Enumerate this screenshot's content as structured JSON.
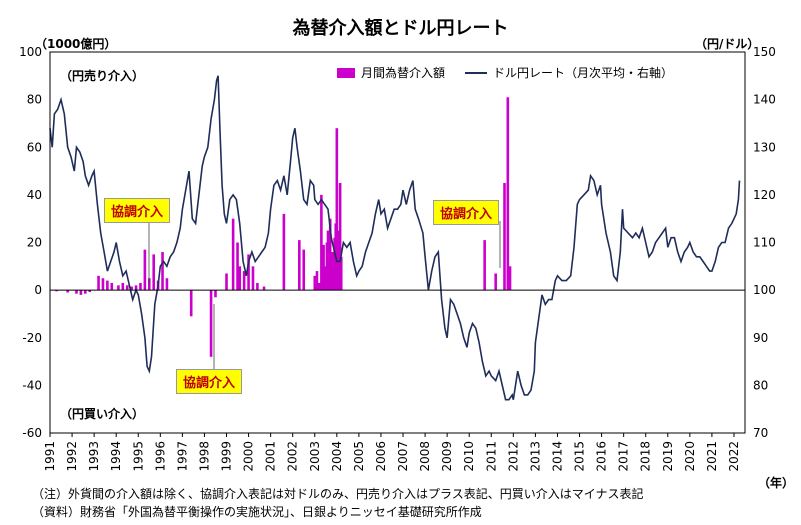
{
  "chart_data": {
    "type": "bar+line",
    "title": "為替介入額とドル円レート",
    "left_axis_unit": "（1000億円）",
    "right_axis_unit": "（円/ドル）",
    "x_unit": "（年）",
    "ylim_left": [
      -60,
      100
    ],
    "yticks_left": [
      -60,
      -40,
      -20,
      0,
      20,
      40,
      60,
      80,
      100
    ],
    "ylim_right": [
      70,
      150
    ],
    "yticks_right": [
      70,
      80,
      90,
      100,
      110,
      120,
      130,
      140,
      150
    ],
    "years": [
      "1991",
      "1992",
      "1993",
      "1994",
      "1995",
      "1996",
      "1997",
      "1998",
      "1999",
      "2000",
      "2001",
      "2002",
      "2003",
      "2004",
      "2005",
      "2006",
      "2007",
      "2008",
      "2009",
      "2010",
      "2011",
      "2012",
      "2013",
      "2014",
      "2015",
      "2016",
      "2017",
      "2018",
      "2019",
      "2020",
      "2021",
      "2022"
    ],
    "series": [
      {
        "name": "月間為替介入額",
        "kind": "bar",
        "color": "#cc00cc",
        "points": [
          [
            1991.3,
            -0.5
          ],
          [
            1991.8,
            -1
          ],
          [
            1992.2,
            -1.5
          ],
          [
            1992.4,
            -2
          ],
          [
            1992.6,
            -1.5
          ],
          [
            1992.8,
            -0.8
          ],
          [
            1993.2,
            6
          ],
          [
            1993.4,
            5
          ],
          [
            1993.6,
            4
          ],
          [
            1993.8,
            3
          ],
          [
            1994.1,
            2
          ],
          [
            1994.3,
            3
          ],
          [
            1994.5,
            2
          ],
          [
            1994.7,
            1.5
          ],
          [
            1994.9,
            2
          ],
          [
            1995.1,
            3
          ],
          [
            1995.3,
            17
          ],
          [
            1995.5,
            5
          ],
          [
            1995.7,
            15
          ],
          [
            1995.9,
            4
          ],
          [
            1996.1,
            16
          ],
          [
            1996.3,
            5
          ],
          [
            1997.4,
            -11
          ],
          [
            1998.3,
            -28
          ],
          [
            1998.5,
            -3
          ],
          [
            1999.0,
            7
          ],
          [
            1999.3,
            30
          ],
          [
            1999.5,
            20
          ],
          [
            1999.6,
            10
          ],
          [
            1999.8,
            8
          ],
          [
            2000.0,
            15
          ],
          [
            2000.2,
            10
          ],
          [
            2000.4,
            3
          ],
          [
            2000.7,
            1.5
          ],
          [
            2001.6,
            32
          ],
          [
            2002.3,
            21
          ],
          [
            2002.5,
            17
          ],
          [
            2003.0,
            6
          ],
          [
            2003.1,
            8
          ],
          [
            2003.2,
            3
          ],
          [
            2003.3,
            40
          ],
          [
            2003.4,
            19
          ],
          [
            2003.5,
            10
          ],
          [
            2003.55,
            20
          ],
          [
            2003.6,
            25
          ],
          [
            2003.7,
            30
          ],
          [
            2003.8,
            16
          ],
          [
            2003.9,
            22
          ],
          [
            2003.95,
            28
          ],
          [
            2004.0,
            68
          ],
          [
            2004.05,
            25
          ],
          [
            2004.1,
            20
          ],
          [
            2004.15,
            45
          ],
          [
            2004.2,
            14
          ],
          [
            2010.7,
            21
          ],
          [
            2011.2,
            7
          ],
          [
            2011.6,
            45
          ],
          [
            2011.75,
            81
          ],
          [
            2011.85,
            10
          ]
        ]
      },
      {
        "name": "ドル円レート（月次平均・右軸）",
        "kind": "line",
        "axis": "right",
        "color": "#1f2d5a",
        "points": [
          [
            1991.0,
            134
          ],
          [
            1991.1,
            130
          ],
          [
            1991.2,
            137
          ],
          [
            1991.35,
            138
          ],
          [
            1991.5,
            140
          ],
          [
            1991.65,
            137
          ],
          [
            1991.8,
            130
          ],
          [
            1991.95,
            128
          ],
          [
            1992.1,
            125
          ],
          [
            1992.2,
            130
          ],
          [
            1992.35,
            129
          ],
          [
            1992.5,
            127
          ],
          [
            1992.6,
            124
          ],
          [
            1992.75,
            122
          ],
          [
            1992.9,
            124
          ],
          [
            1993.0,
            125
          ],
          [
            1993.15,
            118
          ],
          [
            1993.3,
            112
          ],
          [
            1993.45,
            108
          ],
          [
            1993.6,
            104
          ],
          [
            1993.75,
            106
          ],
          [
            1993.9,
            108
          ],
          [
            1994.0,
            110
          ],
          [
            1994.15,
            106
          ],
          [
            1994.3,
            103
          ],
          [
            1994.45,
            104
          ],
          [
            1994.6,
            101
          ],
          [
            1994.75,
            98
          ],
          [
            1994.9,
            100
          ],
          [
            1995.0,
            99
          ],
          [
            1995.15,
            95
          ],
          [
            1995.3,
            90
          ],
          [
            1995.4,
            84
          ],
          [
            1995.5,
            83
          ],
          [
            1995.6,
            86
          ],
          [
            1995.75,
            97
          ],
          [
            1995.9,
            101
          ],
          [
            1996.0,
            105
          ],
          [
            1996.15,
            106
          ],
          [
            1996.3,
            105
          ],
          [
            1996.45,
            107
          ],
          [
            1996.6,
            108
          ],
          [
            1996.75,
            110
          ],
          [
            1996.9,
            113
          ],
          [
            1997.0,
            117
          ],
          [
            1997.15,
            121
          ],
          [
            1997.3,
            125
          ],
          [
            1997.45,
            115
          ],
          [
            1997.6,
            114
          ],
          [
            1997.75,
            120
          ],
          [
            1997.9,
            126
          ],
          [
            1998.0,
            128
          ],
          [
            1998.15,
            130
          ],
          [
            1998.3,
            136
          ],
          [
            1998.45,
            140
          ],
          [
            1998.55,
            144
          ],
          [
            1998.62,
            145
          ],
          [
            1998.7,
            134
          ],
          [
            1998.8,
            122
          ],
          [
            1998.9,
            116
          ],
          [
            1999.0,
            114
          ],
          [
            1999.15,
            119
          ],
          [
            1999.3,
            120
          ],
          [
            1999.45,
            119
          ],
          [
            1999.6,
            114
          ],
          [
            1999.75,
            106
          ],
          [
            1999.9,
            103
          ],
          [
            2000.0,
            106
          ],
          [
            2000.15,
            108
          ],
          [
            2000.3,
            106
          ],
          [
            2000.45,
            107
          ],
          [
            2000.6,
            108
          ],
          [
            2000.75,
            109
          ],
          [
            2000.9,
            112
          ],
          [
            2001.0,
            117
          ],
          [
            2001.15,
            122
          ],
          [
            2001.3,
            123
          ],
          [
            2001.45,
            121
          ],
          [
            2001.6,
            124
          ],
          [
            2001.75,
            120
          ],
          [
            2001.9,
            127
          ],
          [
            2002.0,
            132
          ],
          [
            2002.1,
            134
          ],
          [
            2002.2,
            130
          ],
          [
            2002.35,
            125
          ],
          [
            2002.5,
            119
          ],
          [
            2002.65,
            118
          ],
          [
            2002.8,
            123
          ],
          [
            2002.95,
            122
          ],
          [
            2003.0,
            119
          ],
          [
            2003.15,
            118
          ],
          [
            2003.3,
            119
          ],
          [
            2003.45,
            118
          ],
          [
            2003.6,
            117
          ],
          [
            2003.75,
            111
          ],
          [
            2003.9,
            108
          ],
          [
            2004.0,
            106
          ],
          [
            2004.15,
            106
          ],
          [
            2004.3,
            110
          ],
          [
            2004.45,
            109
          ],
          [
            2004.6,
            110
          ],
          [
            2004.75,
            106
          ],
          [
            2004.9,
            103
          ],
          [
            2005.0,
            104
          ],
          [
            2005.15,
            105
          ],
          [
            2005.3,
            108
          ],
          [
            2005.45,
            110
          ],
          [
            2005.6,
            112
          ],
          [
            2005.75,
            116
          ],
          [
            2005.9,
            119
          ],
          [
            2006.0,
            116
          ],
          [
            2006.15,
            117
          ],
          [
            2006.3,
            113
          ],
          [
            2006.45,
            115
          ],
          [
            2006.6,
            117
          ],
          [
            2006.75,
            117
          ],
          [
            2006.9,
            118
          ],
          [
            2007.0,
            121
          ],
          [
            2007.15,
            118
          ],
          [
            2007.3,
            121
          ],
          [
            2007.45,
            123
          ],
          [
            2007.55,
            117
          ],
          [
            2007.7,
            115
          ],
          [
            2007.9,
            112
          ],
          [
            2008.0,
            107
          ],
          [
            2008.15,
            100
          ],
          [
            2008.3,
            104
          ],
          [
            2008.45,
            107
          ],
          [
            2008.6,
            108
          ],
          [
            2008.75,
            98
          ],
          [
            2008.9,
            92
          ],
          [
            2009.0,
            90
          ],
          [
            2009.15,
            98
          ],
          [
            2009.3,
            97
          ],
          [
            2009.45,
            95
          ],
          [
            2009.6,
            93
          ],
          [
            2009.75,
            90
          ],
          [
            2009.9,
            88
          ],
          [
            2010.0,
            91
          ],
          [
            2010.15,
            93
          ],
          [
            2010.3,
            92
          ],
          [
            2010.45,
            89
          ],
          [
            2010.6,
            85
          ],
          [
            2010.75,
            82
          ],
          [
            2010.9,
            83
          ],
          [
            2011.0,
            82
          ],
          [
            2011.2,
            81
          ],
          [
            2011.35,
            83
          ],
          [
            2011.5,
            80
          ],
          [
            2011.65,
            77
          ],
          [
            2011.8,
            77
          ],
          [
            2011.95,
            78
          ],
          [
            2012.0,
            77
          ],
          [
            2012.2,
            83
          ],
          [
            2012.35,
            80
          ],
          [
            2012.5,
            78
          ],
          [
            2012.65,
            78
          ],
          [
            2012.8,
            79
          ],
          [
            2012.95,
            83
          ],
          [
            2013.0,
            89
          ],
          [
            2013.15,
            94
          ],
          [
            2013.3,
            99
          ],
          [
            2013.45,
            97
          ],
          [
            2013.6,
            98
          ],
          [
            2013.75,
            98
          ],
          [
            2013.9,
            102
          ],
          [
            2014.0,
            103
          ],
          [
            2014.2,
            102
          ],
          [
            2014.4,
            102
          ],
          [
            2014.6,
            103
          ],
          [
            2014.75,
            109
          ],
          [
            2014.9,
            118
          ],
          [
            2015.0,
            119
          ],
          [
            2015.2,
            120
          ],
          [
            2015.4,
            121
          ],
          [
            2015.5,
            124
          ],
          [
            2015.65,
            123
          ],
          [
            2015.8,
            120
          ],
          [
            2015.95,
            122
          ],
          [
            2016.0,
            118
          ],
          [
            2016.2,
            112
          ],
          [
            2016.4,
            108
          ],
          [
            2016.55,
            103
          ],
          [
            2016.7,
            102
          ],
          [
            2016.85,
            108
          ],
          [
            2016.95,
            117
          ],
          [
            2017.0,
            113
          ],
          [
            2017.2,
            112
          ],
          [
            2017.4,
            111
          ],
          [
            2017.55,
            112
          ],
          [
            2017.7,
            111
          ],
          [
            2017.85,
            113
          ],
          [
            2018.0,
            110
          ],
          [
            2018.15,
            107
          ],
          [
            2018.3,
            108
          ],
          [
            2018.45,
            110
          ],
          [
            2018.6,
            111
          ],
          [
            2018.75,
            112
          ],
          [
            2018.9,
            113
          ],
          [
            2019.0,
            109
          ],
          [
            2019.15,
            111
          ],
          [
            2019.3,
            111
          ],
          [
            2019.45,
            108
          ],
          [
            2019.6,
            106
          ],
          [
            2019.75,
            108
          ],
          [
            2019.9,
            109
          ],
          [
            2020.0,
            110
          ],
          [
            2020.15,
            108
          ],
          [
            2020.3,
            107
          ],
          [
            2020.45,
            107
          ],
          [
            2020.6,
            106
          ],
          [
            2020.75,
            105
          ],
          [
            2020.9,
            104
          ],
          [
            2021.0,
            104
          ],
          [
            2021.15,
            106
          ],
          [
            2021.3,
            109
          ],
          [
            2021.45,
            110
          ],
          [
            2021.6,
            110
          ],
          [
            2021.75,
            113
          ],
          [
            2021.9,
            114
          ],
          [
            2022.0,
            115
          ],
          [
            2022.1,
            116
          ],
          [
            2022.2,
            119
          ],
          [
            2022.25,
            123
          ]
        ]
      }
    ],
    "legend": [
      "月間為替介入額",
      "ドル円レート（月次平均・右軸）"
    ],
    "legend_placement": "top-center",
    "annotations": {
      "buy_side": "（円売り介入）",
      "sell_side": "（円買い介入）",
      "callouts": [
        "協調介入",
        "協調介入",
        "協調介入"
      ]
    },
    "notes": [
      "（注）外貨間の介入額は除く、協調介入表記は対ドルのみ、円売り介入はプラス表記、円買い介入はマイナス表記",
      "（資料）財務省「外国為替平衡操作の実施状況」、日銀よりニッセイ基礎研究所作成"
    ]
  }
}
